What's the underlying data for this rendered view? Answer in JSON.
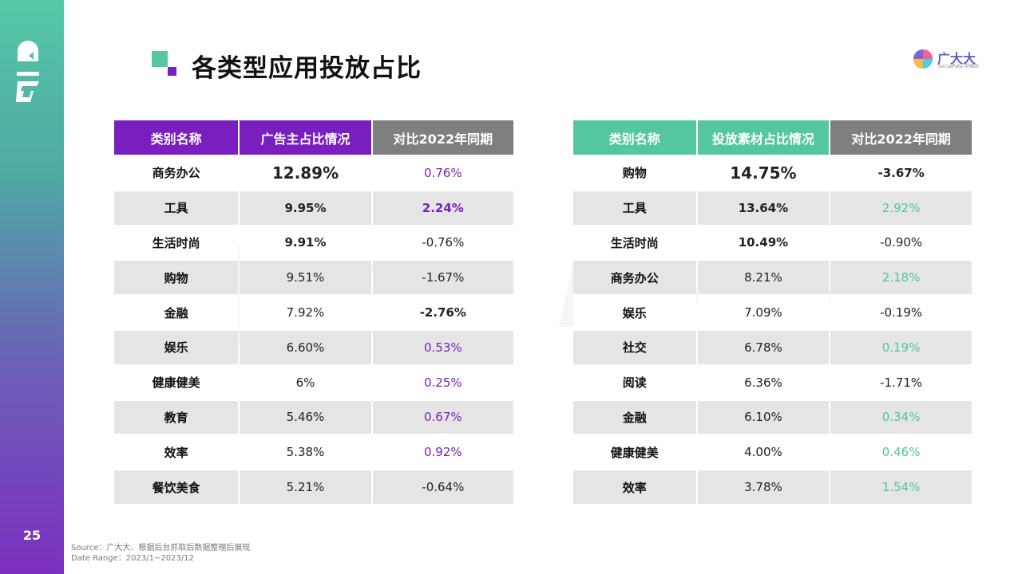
{
  "page": {
    "number": "25",
    "title": "各类型应用投放占比"
  },
  "brand": {
    "name": "广大大",
    "sub": "SocialPeta 中国站"
  },
  "watermarks": {
    "left": "广大大",
    "left_sub": "SocialPeta 中国站",
    "right": "Flat Ads"
  },
  "colors": {
    "left_header": "#7a1fbf",
    "right_header": "#55c7a0",
    "compare_header": "#7f7f7f",
    "left_accent": "#7a1fbf",
    "right_accent": "#4fc5a0"
  },
  "left_table": {
    "headers": [
      "类别名称",
      "广告主占比情况",
      "对比2022年同期"
    ],
    "rows": [
      {
        "category": "商务办公",
        "value": "12.89%",
        "change": "0.76%"
      },
      {
        "category": "工具",
        "value": "9.95%",
        "change": "2.24%"
      },
      {
        "category": "生活时尚",
        "value": "9.91%",
        "change": "-0.76%"
      },
      {
        "category": "购物",
        "value": "9.51%",
        "change": "-1.67%"
      },
      {
        "category": "金融",
        "value": "7.92%",
        "change": "-2.76%"
      },
      {
        "category": "娱乐",
        "value": "6.60%",
        "change": "0.53%"
      },
      {
        "category": "健康健美",
        "value": "6%",
        "change": "0.25%"
      },
      {
        "category": "教育",
        "value": "5.46%",
        "change": "0.67%"
      },
      {
        "category": "效率",
        "value": "5.38%",
        "change": "0.92%"
      },
      {
        "category": "餐饮美食",
        "value": "5.21%",
        "change": "-0.64%"
      }
    ]
  },
  "right_table": {
    "headers": [
      "类别名称",
      "投放素材占比情况",
      "对比2022年同期"
    ],
    "rows": [
      {
        "category": "购物",
        "value": "14.75%",
        "change": "-3.67%"
      },
      {
        "category": "工具",
        "value": "13.64%",
        "change": "2.92%"
      },
      {
        "category": "生活时尚",
        "value": "10.49%",
        "change": "-0.90%"
      },
      {
        "category": "商务办公",
        "value": "8.21%",
        "change": "2.18%"
      },
      {
        "category": "娱乐",
        "value": "7.09%",
        "change": "-0.19%"
      },
      {
        "category": "社交",
        "value": "6.78%",
        "change": "0.19%"
      },
      {
        "category": "阅读",
        "value": "6.36%",
        "change": "-1.71%"
      },
      {
        "category": "金融",
        "value": "6.10%",
        "change": "0.34%"
      },
      {
        "category": "健康健美",
        "value": "4.00%",
        "change": "0.46%"
      },
      {
        "category": "效率",
        "value": "3.78%",
        "change": "1.54%"
      }
    ]
  },
  "footer": {
    "source": "Source：广大大、根据后台抓取后数据整理后展现",
    "date_range": "Date Range：2023/1~2023/12"
  }
}
